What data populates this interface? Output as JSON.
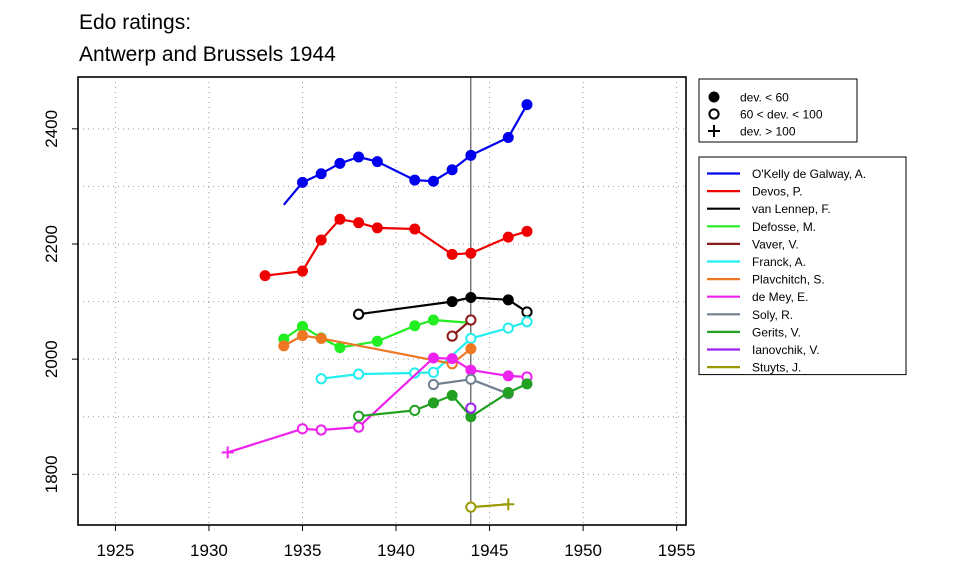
{
  "chart_data": {
    "type": "line",
    "title": [
      "Edo ratings:",
      "Antwerp and Brussels 1944"
    ],
    "xlabel": "",
    "ylabel": "",
    "xlim": [
      1923,
      1955.5
    ],
    "ylim": [
      1712,
      2490
    ],
    "x_ticks": [
      1925,
      1930,
      1935,
      1940,
      1945,
      1950,
      1955
    ],
    "y_ticks": [
      1800,
      2000,
      2200,
      2400
    ],
    "x_tick_labels": [
      "1925",
      "1930",
      "1935",
      "1940",
      "1945",
      "1950",
      "1955"
    ],
    "y_tick_labels": [
      "1800",
      "2000",
      "2200",
      "2400"
    ],
    "grid": "dotted",
    "reference_line_x": 1944,
    "marker_legend": [
      {
        "marker": "filled",
        "label": "dev. < 60"
      },
      {
        "marker": "open",
        "label": "60 < dev. < 100"
      },
      {
        "marker": "plus",
        "label": "dev. > 100"
      }
    ],
    "legend_placement": "right",
    "series": [
      {
        "name": "O'Kelly de Galway, A.",
        "color": "#0000ee",
        "points": [
          {
            "x": 1934,
            "y": 2268,
            "m": "none"
          },
          {
            "x": 1935,
            "y": 2307,
            "m": "filled"
          },
          {
            "x": 1936,
            "y": 2322,
            "m": "filled"
          },
          {
            "x": 1937,
            "y": 2340,
            "m": "filled"
          },
          {
            "x": 1938,
            "y": 2351,
            "m": "filled"
          },
          {
            "x": 1939,
            "y": 2343,
            "m": "filled"
          },
          {
            "x": 1941,
            "y": 2311,
            "m": "filled"
          },
          {
            "x": 1942,
            "y": 2309,
            "m": "filled"
          },
          {
            "x": 1943,
            "y": 2329,
            "m": "filled"
          },
          {
            "x": 1944,
            "y": 2354,
            "m": "filled"
          },
          {
            "x": 1946,
            "y": 2385,
            "m": "filled"
          },
          {
            "x": 1947,
            "y": 2442,
            "m": "filled"
          }
        ]
      },
      {
        "name": "Devos, P.",
        "color": "#ee0000",
        "points": [
          {
            "x": 1933,
            "y": 2145,
            "m": "filled"
          },
          {
            "x": 1935,
            "y": 2153,
            "m": "filled"
          },
          {
            "x": 1936,
            "y": 2207,
            "m": "filled"
          },
          {
            "x": 1937,
            "y": 2243,
            "m": "filled"
          },
          {
            "x": 1938,
            "y": 2237,
            "m": "filled"
          },
          {
            "x": 1939,
            "y": 2228,
            "m": "filled"
          },
          {
            "x": 1941,
            "y": 2226,
            "m": "filled"
          },
          {
            "x": 1943,
            "y": 2182,
            "m": "filled"
          },
          {
            "x": 1944,
            "y": 2184,
            "m": "filled"
          },
          {
            "x": 1946,
            "y": 2212,
            "m": "filled"
          },
          {
            "x": 1947,
            "y": 2222,
            "m": "filled"
          }
        ]
      },
      {
        "name": "van Lennep, F.",
        "color": "#000000",
        "points": [
          {
            "x": 1938,
            "y": 2078,
            "m": "open"
          },
          {
            "x": 1943,
            "y": 2100,
            "m": "filled"
          },
          {
            "x": 1944,
            "y": 2107,
            "m": "filled"
          },
          {
            "x": 1946,
            "y": 2103,
            "m": "filled"
          },
          {
            "x": 1947,
            "y": 2082,
            "m": "open"
          }
        ]
      },
      {
        "name": "Defosse, M.",
        "color": "#22ee22",
        "points": [
          {
            "x": 1934,
            "y": 2035,
            "m": "filled"
          },
          {
            "x": 1935,
            "y": 2057,
            "m": "filled"
          },
          {
            "x": 1936,
            "y": 2037,
            "m": "filled"
          },
          {
            "x": 1937,
            "y": 2020,
            "m": "filled"
          },
          {
            "x": 1939,
            "y": 2031,
            "m": "filled"
          },
          {
            "x": 1941,
            "y": 2058,
            "m": "filled"
          },
          {
            "x": 1942,
            "y": 2068,
            "m": "filled"
          },
          {
            "x": 1944,
            "y": 2063,
            "m": "none"
          }
        ]
      },
      {
        "name": "Vaver, V.",
        "color": "#8b1a1a",
        "points": [
          {
            "x": 1943,
            "y": 2040,
            "m": "open"
          },
          {
            "x": 1944,
            "y": 2068,
            "m": "open"
          }
        ]
      },
      {
        "name": "Franck, A.",
        "color": "#22eeee",
        "points": [
          {
            "x": 1936,
            "y": 1966,
            "m": "open"
          },
          {
            "x": 1938,
            "y": 1974,
            "m": "open"
          },
          {
            "x": 1941,
            "y": 1976,
            "m": "open"
          },
          {
            "x": 1942,
            "y": 1977,
            "m": "open"
          },
          {
            "x": 1944,
            "y": 2036,
            "m": "open"
          },
          {
            "x": 1946,
            "y": 2054,
            "m": "open"
          },
          {
            "x": 1947,
            "y": 2065,
            "m": "open"
          }
        ]
      },
      {
        "name": "Plavchitch, S.",
        "color": "#ee7722",
        "points": [
          {
            "x": 1934,
            "y": 2023,
            "m": "filled"
          },
          {
            "x": 1935,
            "y": 2041,
            "m": "filled"
          },
          {
            "x": 1936,
            "y": 2036,
            "m": "filled"
          },
          {
            "x": 1943,
            "y": 1992,
            "m": "open"
          },
          {
            "x": 1944,
            "y": 2018,
            "m": "filled"
          }
        ]
      },
      {
        "name": "de Mey, E.",
        "color": "#ee22ee",
        "points": [
          {
            "x": 1931,
            "y": 1838,
            "m": "plus"
          },
          {
            "x": 1935,
            "y": 1879,
            "m": "open"
          },
          {
            "x": 1936,
            "y": 1877,
            "m": "open"
          },
          {
            "x": 1938,
            "y": 1882,
            "m": "open"
          },
          {
            "x": 1942,
            "y": 2002,
            "m": "filled"
          },
          {
            "x": 1943,
            "y": 2001,
            "m": "filled"
          },
          {
            "x": 1944,
            "y": 1981,
            "m": "filled"
          },
          {
            "x": 1946,
            "y": 1971,
            "m": "filled"
          },
          {
            "x": 1947,
            "y": 1969,
            "m": "open"
          }
        ]
      },
      {
        "name": "Soly, R.",
        "color": "#708090",
        "points": [
          {
            "x": 1942,
            "y": 1956,
            "m": "open"
          },
          {
            "x": 1944,
            "y": 1965,
            "m": "open"
          },
          {
            "x": 1946,
            "y": 1940,
            "m": "filled"
          }
        ]
      },
      {
        "name": "Gerits, V.",
        "color": "#22a022",
        "points": [
          {
            "x": 1938,
            "y": 1901,
            "m": "open"
          },
          {
            "x": 1941,
            "y": 1911,
            "m": "open"
          },
          {
            "x": 1942,
            "y": 1924,
            "m": "filled"
          },
          {
            "x": 1943,
            "y": 1937,
            "m": "filled"
          },
          {
            "x": 1944,
            "y": 1900,
            "m": "filled"
          },
          {
            "x": 1946,
            "y": 1942,
            "m": "filled"
          },
          {
            "x": 1947,
            "y": 1957,
            "m": "filled"
          }
        ]
      },
      {
        "name": "Ianovchik, V.",
        "color": "#9a22ee",
        "points": [
          {
            "x": 1944,
            "y": 1915,
            "m": "open"
          }
        ]
      },
      {
        "name": "Stuyts, J.",
        "color": "#9a9a00",
        "points": [
          {
            "x": 1944,
            "y": 1743,
            "m": "open"
          },
          {
            "x": 1946,
            "y": 1748,
            "m": "plus"
          }
        ]
      }
    ]
  }
}
